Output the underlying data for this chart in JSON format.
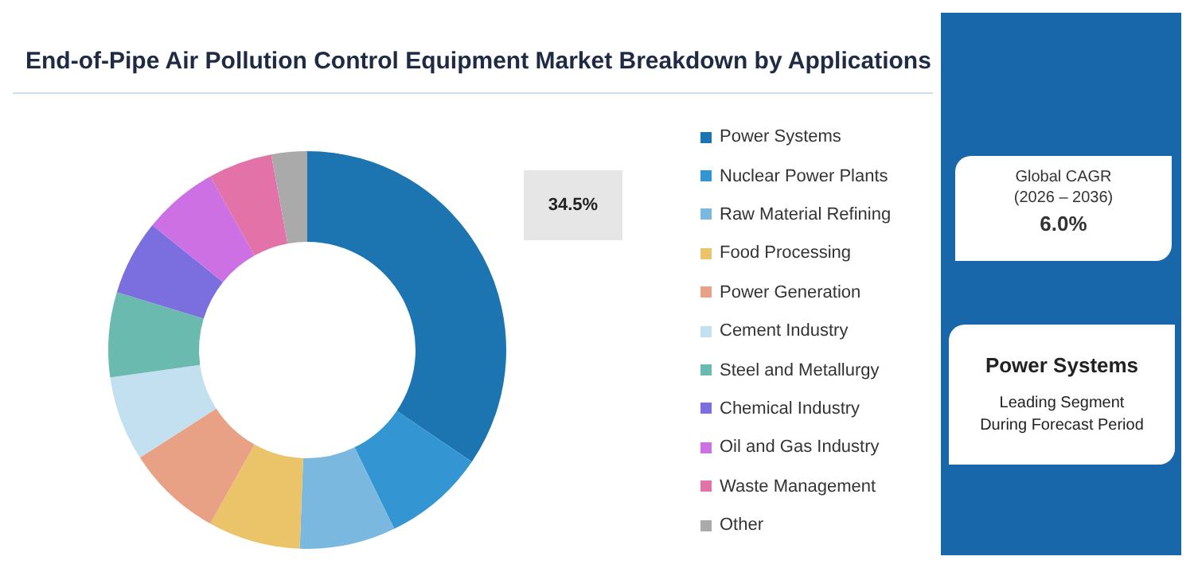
{
  "chart_data": {
    "type": "donut",
    "title": "End-of-Pipe Air Pollution Control Equipment Market Breakdown by Applications",
    "categories": [
      "Power Systems",
      "Nuclear Power Plants",
      "Raw Material Refining",
      "Food Processing",
      "Power Generation",
      "Cement Industry",
      "Steel and Metallurgy",
      "Chemical Industry",
      "Oil and Gas Industry",
      "Waste Management",
      "Other"
    ],
    "values": [
      34.5,
      8.3,
      7.8,
      7.5,
      7.8,
      6.9,
      6.9,
      6.1,
      6.1,
      5.2,
      2.9
    ],
    "colors": [
      "#1c75b0",
      "#3396d3",
      "#7ab8e0",
      "#ebc469",
      "#e9a185",
      "#c3e0f0",
      "#6bbab0",
      "#7b6fe0",
      "#cc70e4",
      "#e272a8",
      "#aaaaaa"
    ],
    "value_labels": [
      "34.5%",
      null,
      null,
      null,
      null,
      null,
      null,
      null,
      null,
      null,
      null
    ],
    "legend": "right",
    "annotations": [
      "Global CAGR",
      "(2026 – 2036)",
      "6.0%",
      "Power Systems",
      "Leading Segment During Forecast Period"
    ]
  }
}
